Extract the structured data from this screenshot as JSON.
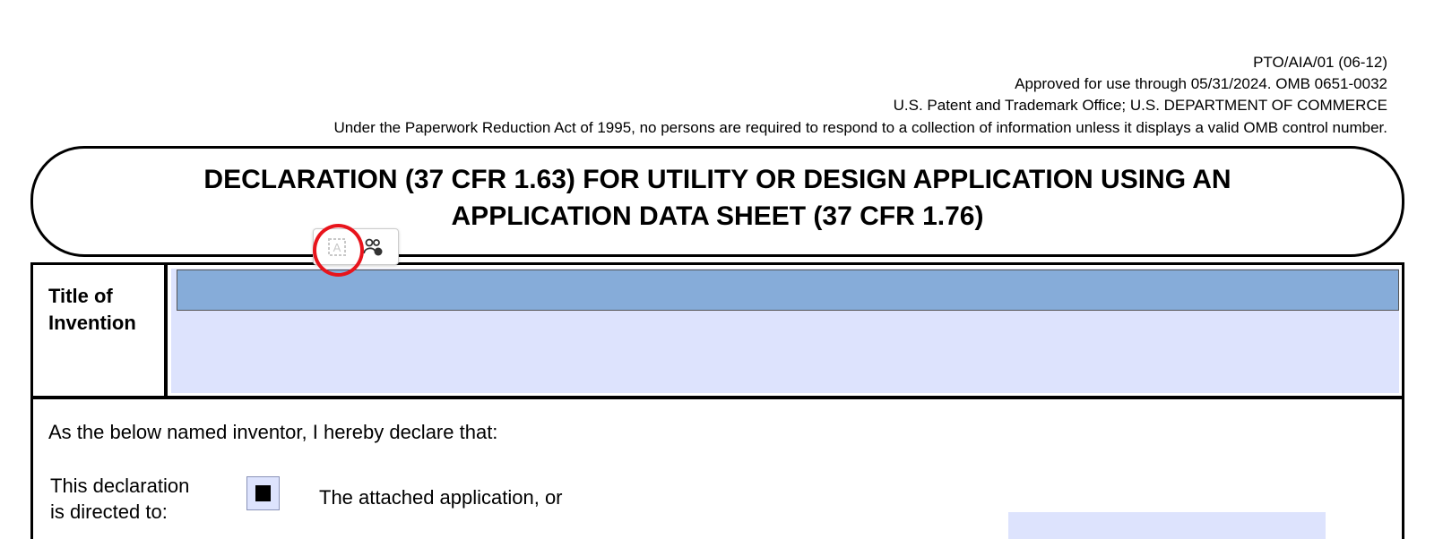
{
  "header": {
    "form_id": "PTO/AIA/01 (06-12)",
    "approval": "Approved for use through 05/31/2024.  OMB 0651-0032",
    "office": "U.S. Patent and Trademark Office; U.S. DEPARTMENT OF COMMERCE",
    "paperwork": "Under the Paperwork Reduction Act of 1995, no persons are required to respond to a collection of information unless it displays a valid OMB control number."
  },
  "title": {
    "line1": "DECLARATION (37 CFR 1.63) FOR UTILITY OR DESIGN APPLICATION USING AN",
    "line2": "APPLICATION DATA SHEET (37 CFR 1.76)"
  },
  "popup": {
    "icons": [
      "text-field-icon",
      "people-sign-icon"
    ]
  },
  "invention": {
    "label_line1": "Title of",
    "label_line2": "Invention",
    "value": ""
  },
  "declaration": {
    "intro": "As the below named inventor, I hereby declare that:",
    "directed_line1": "This declaration",
    "directed_line2": "is directed to:",
    "option1_checked": true,
    "option1": "The attached application, or"
  },
  "colors": {
    "field_fill": "#dde3fd",
    "field_focused": "#86acd9",
    "highlight_ring": "#e8141c"
  }
}
